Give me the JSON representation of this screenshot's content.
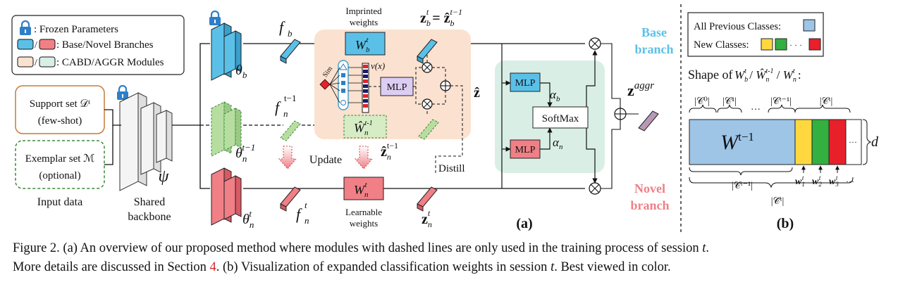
{
  "legend": {
    "frozen": ": Frozen Parameters",
    "branches": ": Base/Novel Branches",
    "modules": ": CABD/AGGR Modules"
  },
  "input": {
    "support_line1": "Support set 𝒟ᵗ",
    "support_line2": "(few-shot)",
    "exemplar_line1": "Exemplar set ℳ",
    "exemplar_line2": "(optional)",
    "label": "Input data"
  },
  "backbone": {
    "symbol": "ψ",
    "line1": "Shared",
    "line2": "backbone"
  },
  "theta": {
    "base": "θ",
    "base_sub": "b",
    "novel_old": "θ",
    "novel_old_sub": "n",
    "novel_old_sup": "t−1",
    "novel": "θ",
    "novel_sub": "n",
    "novel_sup": "t"
  },
  "features": {
    "fb": "f",
    "fb_sub": "b",
    "fn_old": "f",
    "fn_old_sub": "n",
    "fn_old_sup": "t−1",
    "fn": "f",
    "fn_sub": "n",
    "fn_sup": "t"
  },
  "weights": {
    "imprinted_line1": "Imprinted",
    "imprinted_line2": "weights",
    "learnable_line1": "Learnable",
    "learnable_line2": "weights",
    "wb": "W",
    "wb_sub": "b",
    "wb_sup": "t",
    "wn_old": "Ŵ",
    "wn_old_sub": "n",
    "wn_old_sup": "t-1",
    "wn": "W",
    "wn_sub": "n",
    "wn_sup": "t"
  },
  "cabd": {
    "sim": "Sim",
    "nu": "ν(x)",
    "mlp": "MLP",
    "zhat": "ẑ"
  },
  "outputs": {
    "zb": "z",
    "zb_sub": "b",
    "zb_sup": "t",
    "zb_rhs": " = ẑ",
    "zb_rhs_sub": "b",
    "zb_rhs_sup": "t−1",
    "zn_old": "ẑ",
    "zn_old_sub": "n",
    "zn_old_sup": "t−1",
    "zn": "z",
    "zn_sub": "n",
    "zn_sup": "t",
    "zaggr": "z",
    "zaggr_sup": "aggr"
  },
  "labels": {
    "update": "Update",
    "distill": "Distill"
  },
  "aggr": {
    "mlp_top": "MLP",
    "mlp_bottom": "MLP",
    "softmax": "SoftMax",
    "alpha": "α",
    "alpha_b": "b",
    "alpha_n": "n"
  },
  "branch_labels": {
    "base_1": "Base",
    "base_2": "branch",
    "novel_1": "Novel",
    "novel_2": "branch"
  },
  "panel_a": "(a)",
  "panel_b": {
    "label": "(b)",
    "all_prev": "All Previous Classes:",
    "new_classes": "New Classes:",
    "dots": "· · ·",
    "shape_of": "Shape of",
    "shape_expr": "W",
    "big_w": "W",
    "big_w_sup": "t−1",
    "c0": "|𝒞⁰|",
    "c1": "|𝒞¹|",
    "cdots": "…",
    "ct1": "|𝒞ᵗ⁻¹|",
    "ct": "|𝒞ᵗ|",
    "d": "d",
    "tilde_ct1": "|𝒞̃ᵗ⁻¹|",
    "tilde_ct": "|𝒞̃ᵗ|",
    "w1": "w",
    "w2": "w",
    "w3": "w",
    "wdots": "···"
  },
  "colors": {
    "base": "#5bc0e8",
    "novel": "#f07f86",
    "novel_old": "#b7dea0",
    "cabd_bg": "#fbe1cf",
    "aggr_bg": "#d9efe6",
    "prev_blue": "#9ec4e6",
    "yellow": "#ffd840",
    "green": "#33b040",
    "red": "#e8202a",
    "mlp_purple": "#dccdf2",
    "lock": "#2e7fc8",
    "ref_red": "#d42a2a"
  },
  "caption": {
    "l1a": "Figure 2. (a) An overview of our proposed method where modules with dashed lines are only used in the training process of session ",
    "l1b": "t",
    "l1c": ".",
    "l2a": "More details are discussed in Section ",
    "l2ref": "4",
    "l2b": ". (b) Visualization of expanded classification weights in session ",
    "l2c": "t",
    "l2d": ". Best viewed in color."
  }
}
